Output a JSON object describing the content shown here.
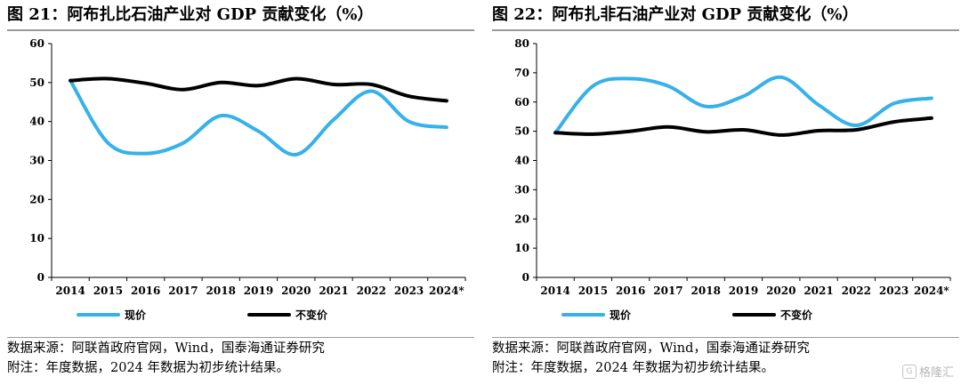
{
  "figures": [
    {
      "title": "图 21：阿布扎比石油产业对 GDP 贡献变化（%）",
      "source_note": "数据来源：阿联酋政府官网，Wind，国泰海通证券研究",
      "footnote": "附注：年度数据，2024 年数据为初步统计结果。"
    },
    {
      "title": "图 22：阿布扎非石油产业对 GDP 贡献变化（%）",
      "source_note": "数据来源：阿联酋政府官网，Wind，国泰海通证券研究",
      "footnote": "附注：年度数据，2024 年数据为初步统计结果。"
    }
  ],
  "watermark": {
    "text": "格隆汇",
    "icon": "g-logo-icon"
  },
  "chart_data": [
    {
      "type": "line",
      "title": "图 21：阿布扎比石油产业对 GDP 贡献变化（%）",
      "categories": [
        "2014",
        "2015",
        "2016",
        "2017",
        "2018",
        "2019",
        "2020",
        "2021",
        "2022",
        "2023",
        "2024*"
      ],
      "series": [
        {
          "name": "现价",
          "color": "#36b1ea",
          "values": [
            50.5,
            34.5,
            31.8,
            34.5,
            41.5,
            37.5,
            31.5,
            40.5,
            47.8,
            40.0,
            38.5
          ]
        },
        {
          "name": "不变价",
          "color": "#000000",
          "values": [
            50.5,
            51.0,
            49.8,
            48.2,
            50.0,
            49.2,
            51.0,
            49.5,
            49.5,
            46.5,
            45.3
          ]
        }
      ],
      "ylim": [
        0,
        60
      ],
      "yticks": [
        0,
        10,
        20,
        30,
        40,
        50,
        60
      ],
      "grid": false,
      "legend": "bottom",
      "xlabel": "",
      "ylabel": ""
    },
    {
      "type": "line",
      "title": "图 22：阿布扎非石油产业对 GDP 贡献变化（%）",
      "categories": [
        "2014",
        "2015",
        "2016",
        "2017",
        "2018",
        "2019",
        "2020",
        "2021",
        "2022",
        "2023",
        "2024*"
      ],
      "series": [
        {
          "name": "现价",
          "color": "#36b1ea",
          "values": [
            49.5,
            65.5,
            68.0,
            65.5,
            58.5,
            62.0,
            68.5,
            59.0,
            52.0,
            59.5,
            61.3
          ]
        },
        {
          "name": "不变价",
          "color": "#000000",
          "values": [
            49.5,
            49.0,
            50.0,
            51.5,
            49.8,
            50.5,
            48.7,
            50.2,
            50.5,
            53.2,
            54.5
          ]
        }
      ],
      "ylim": [
        0,
        80
      ],
      "yticks": [
        0,
        10,
        20,
        30,
        40,
        50,
        60,
        70,
        80
      ],
      "grid": false,
      "legend": "bottom",
      "xlabel": "",
      "ylabel": ""
    }
  ]
}
